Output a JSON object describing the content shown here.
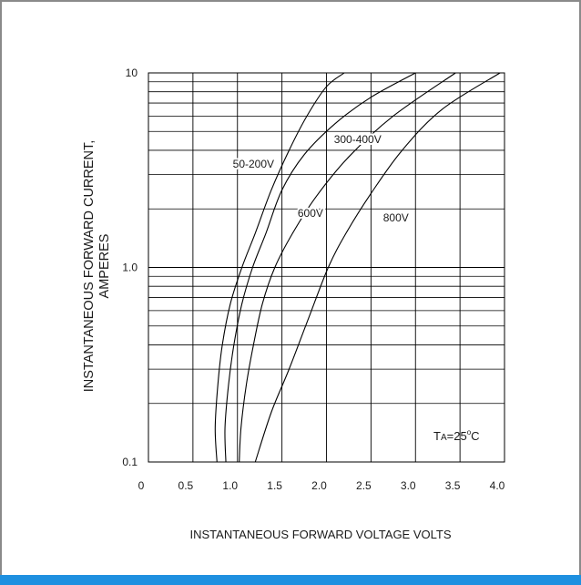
{
  "colors": {
    "frame": "#8a8a8a",
    "accent_bar": "#1e90e0",
    "ink": "#000000"
  },
  "chart_data": {
    "type": "line",
    "xlabel": "INSTANTANEOUS FORWARD VOLTAGE VOLTS",
    "ylabel_line1": "INSTANTANEOUS FORWARD CURRENT,",
    "ylabel_line2": "AMPERES",
    "xlim": [
      0,
      4.0
    ],
    "ylim": [
      0.1,
      10
    ],
    "y_scale": "log",
    "grid": true,
    "x_ticks": [
      "0",
      "0.5",
      "1.0",
      "1.5",
      "2.0",
      "2.5",
      "3.0",
      "3.5",
      "4.0"
    ],
    "y_ticks": [
      "0.1",
      "1.0",
      "10"
    ],
    "annotation": {
      "main": "T",
      "sub": "A",
      "rest": "=25",
      "sup": "o",
      "unit": "C"
    },
    "series": [
      {
        "name": "50-200V",
        "x": [
          0.77,
          0.75,
          0.78,
          0.83,
          0.92,
          1.05,
          1.2,
          1.38,
          1.58,
          1.78,
          2.0,
          2.2
        ],
        "y": [
          0.1,
          0.15,
          0.25,
          0.4,
          0.65,
          1.0,
          1.5,
          2.5,
          4.0,
          6.0,
          8.5,
          10.0
        ]
      },
      {
        "name": "300-400V",
        "x": [
          0.87,
          0.86,
          0.9,
          0.96,
          1.05,
          1.17,
          1.32,
          1.5,
          1.75,
          2.1,
          2.5,
          3.0
        ],
        "y": [
          0.1,
          0.15,
          0.25,
          0.4,
          0.65,
          1.0,
          1.5,
          2.5,
          3.8,
          5.5,
          7.5,
          10.0
        ]
      },
      {
        "name": "600V",
        "x": [
          1.02,
          1.04,
          1.1,
          1.18,
          1.28,
          1.42,
          1.62,
          1.88,
          2.25,
          2.75,
          3.45
        ],
        "y": [
          0.1,
          0.15,
          0.25,
          0.4,
          0.65,
          1.0,
          1.5,
          2.3,
          3.7,
          6.0,
          10.0
        ]
      },
      {
        "name": "800V",
        "x": [
          1.2,
          1.38,
          1.58,
          1.8,
          2.02,
          2.22,
          2.5,
          2.85,
          3.3,
          3.95
        ],
        "y": [
          0.1,
          0.18,
          0.3,
          0.55,
          1.0,
          1.5,
          2.4,
          4.0,
          6.5,
          10.0
        ]
      }
    ]
  }
}
